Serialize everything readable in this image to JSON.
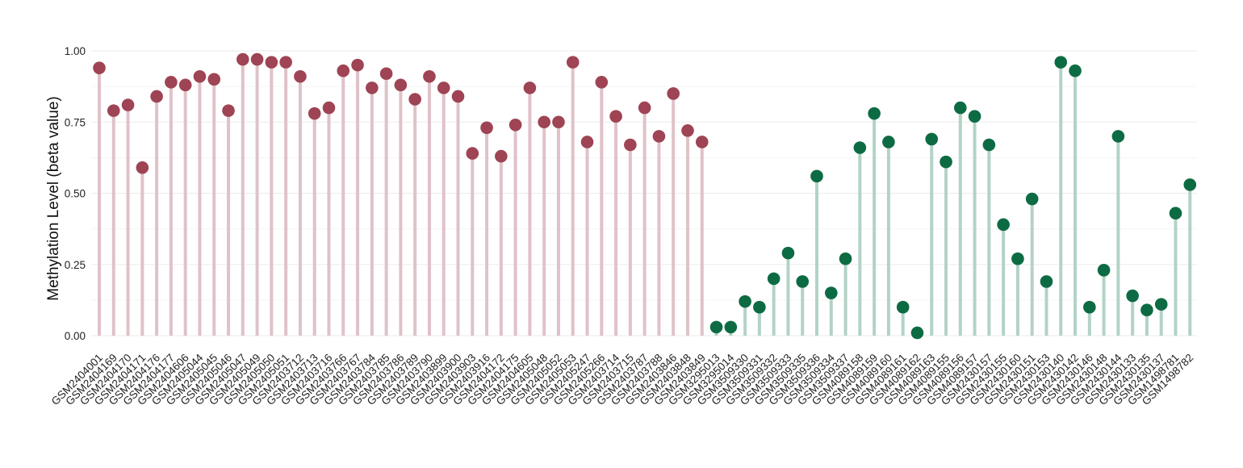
{
  "chart_data": {
    "type": "lollipop",
    "ylabel": "Methylation Level (beta value)",
    "xlabel": "",
    "ylim": [
      0,
      1
    ],
    "yticks": [
      "0.00",
      "0.25",
      "0.50",
      "0.75",
      "1.00"
    ],
    "grid": true,
    "legend": "none",
    "series": [
      {
        "group": "red",
        "dot_color": "#9e4454",
        "stem_color": "#dfc2c8",
        "categories": [
          "GSM2404001",
          "GSM2404169",
          "GSM2404170",
          "GSM2404171",
          "GSM2404176",
          "GSM2404177",
          "GSM2404606",
          "GSM2405044",
          "GSM2405045",
          "GSM2405046",
          "GSM2405047",
          "GSM2405049",
          "GSM2405050",
          "GSM2405051",
          "GSM2403712",
          "GSM2403713",
          "GSM2403716",
          "GSM2403766",
          "GSM2403767",
          "GSM2403784",
          "GSM2403785",
          "GSM2403786",
          "GSM2403789",
          "GSM2403790",
          "GSM2403899",
          "GSM2403900",
          "GSM2403903",
          "GSM2403916",
          "GSM2404172",
          "GSM2404175",
          "GSM2404605",
          "GSM2405048",
          "GSM2405052",
          "GSM2405053",
          "GSM2405247",
          "GSM2405266",
          "GSM2403714",
          "GSM2403715",
          "GSM2403787",
          "GSM2403788",
          "GSM2403846",
          "GSM2403848",
          "GSM2403849"
        ],
        "values": [
          0.94,
          0.79,
          0.81,
          0.59,
          0.84,
          0.89,
          0.88,
          0.91,
          0.9,
          0.79,
          0.97,
          0.97,
          0.96,
          0.96,
          0.91,
          0.78,
          0.8,
          0.93,
          0.95,
          0.87,
          0.92,
          0.88,
          0.83,
          0.91,
          0.87,
          0.84,
          0.64,
          0.73,
          0.63,
          0.74,
          0.87,
          0.75,
          0.75,
          0.96,
          0.68,
          0.89,
          0.77,
          0.67,
          0.8,
          0.7,
          0.85,
          0.72,
          0.68
        ]
      },
      {
        "group": "green",
        "dot_color": "#0d6b43",
        "stem_color": "#b2d3c6",
        "categories": [
          "GSM3295013",
          "GSM3295014",
          "GSM3509330",
          "GSM3509331",
          "GSM3509332",
          "GSM3509333",
          "GSM3509335",
          "GSM3509336",
          "GSM3509334",
          "GSM3509337",
          "GSM4089158",
          "GSM4089159",
          "GSM4089160",
          "GSM4089161",
          "GSM4089162",
          "GSM4089163",
          "GSM4089155",
          "GSM4089156",
          "GSM4089157",
          "GSM2430157",
          "GSM2430155",
          "GSM2430160",
          "GSM2430151",
          "GSM2430153",
          "GSM2430140",
          "GSM2430142",
          "GSM2430146",
          "GSM2430148",
          "GSM2430144",
          "GSM2430133",
          "GSM2430135",
          "GSM2430137",
          "GSM1498781",
          "GSM1498782"
        ],
        "values": [
          0.03,
          0.03,
          0.12,
          0.1,
          0.2,
          0.29,
          0.19,
          0.56,
          0.15,
          0.27,
          0.66,
          0.78,
          0.68,
          0.1,
          0.01,
          0.69,
          0.61,
          0.8,
          0.77,
          0.67,
          0.39,
          0.27,
          0.48,
          0.19,
          0.96,
          0.93,
          0.1,
          0.23,
          0.7,
          0.14,
          0.09,
          0.11,
          0.43,
          0.53
        ]
      }
    ]
  }
}
